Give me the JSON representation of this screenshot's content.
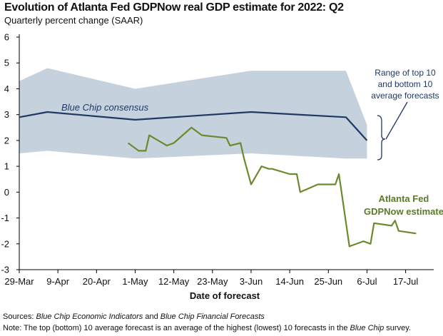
{
  "title": "Evolution of Atlanta Fed GDPNow real GDP estimate for 2022: Q2",
  "subtitle": "Quarterly percent change (SAAR)",
  "footnotes": {
    "sources_label": "Sources:",
    "sources_italic_1": "Blue Chip Economic Indicators",
    "sources_and": "and",
    "sources_italic_2": "Blue Chip Financial Forecasts",
    "note_label": "Note:",
    "note_text_1": "The top (bottom) 10 average forecast is an average of the highest (lowest) 10 forecasts in the",
    "note_italic": "Blue Chip",
    "note_text_2": "survey."
  },
  "colors": {
    "band": "#c5d2dd",
    "blue_chip": "#1f3864",
    "gdpnow": "#6b8a2e",
    "axis": "#000000"
  },
  "chart_data": {
    "type": "line",
    "xlabel": "Date of forecast",
    "ylabel": "",
    "x_ticks": [
      "29-Mar",
      "9-Apr",
      "20-Apr",
      "1-May",
      "12-May",
      "23-May",
      "3-Jun",
      "14-Jun",
      "25-Jun",
      "6-Jul",
      "17-Jul"
    ],
    "y_ticks": [
      "6",
      "5",
      "4",
      "3",
      "2",
      "1",
      "0",
      "-1",
      "-2",
      "-3"
    ],
    "ylim": [
      -3,
      6
    ],
    "grid": false,
    "annotations": {
      "blue_chip": "Blue Chip consensus",
      "gdpnow_line1": "Atlanta Fed",
      "gdpnow_line2": "GDPNow estimate",
      "range_line1": "Range of top 10",
      "range_line2": "and bottom 10",
      "range_line3": "average forecasts"
    },
    "series": [
      {
        "name": "Blue Chip consensus",
        "x": [
          "2022-03-29",
          "2022-04-06",
          "2022-05-01",
          "2022-06-03",
          "2022-06-30",
          "2022-07-06"
        ],
        "values": [
          2.9,
          3.1,
          2.8,
          3.1,
          2.9,
          2.0
        ]
      },
      {
        "name": "Range top 10 average",
        "x": [
          "2022-03-29",
          "2022-04-06",
          "2022-05-01",
          "2022-06-03",
          "2022-06-30",
          "2022-07-06"
        ],
        "values": [
          4.3,
          4.8,
          4.0,
          4.7,
          4.7,
          2.6
        ]
      },
      {
        "name": "Range bottom 10 average",
        "x": [
          "2022-03-29",
          "2022-04-06",
          "2022-05-01",
          "2022-06-03",
          "2022-06-30",
          "2022-07-06"
        ],
        "values": [
          1.5,
          1.6,
          1.3,
          1.5,
          1.3,
          1.3
        ]
      },
      {
        "name": "Atlanta Fed GDPNow estimate",
        "x": [
          "2022-04-29",
          "2022-05-02",
          "2022-05-04",
          "2022-05-05",
          "2022-05-10",
          "2022-05-12",
          "2022-05-17",
          "2022-05-20",
          "2022-05-27",
          "2022-05-28",
          "2022-05-31",
          "2022-06-01",
          "2022-06-03",
          "2022-06-06",
          "2022-06-08",
          "2022-06-09",
          "2022-06-14",
          "2022-06-16",
          "2022-06-17",
          "2022-06-22",
          "2022-06-27",
          "2022-06-28",
          "2022-07-01",
          "2022-07-05",
          "2022-07-07",
          "2022-07-08",
          "2022-07-13",
          "2022-07-14",
          "2022-07-15",
          "2022-07-20"
        ],
        "values": [
          1.9,
          1.6,
          1.6,
          2.2,
          1.8,
          1.9,
          2.5,
          2.2,
          2.1,
          1.8,
          1.9,
          1.3,
          0.3,
          1.0,
          0.9,
          0.9,
          0.7,
          0.7,
          0.0,
          0.3,
          0.3,
          0.7,
          -2.1,
          -1.9,
          -2.0,
          -1.2,
          -1.3,
          -1.1,
          -1.5,
          -1.6
        ]
      }
    ]
  }
}
